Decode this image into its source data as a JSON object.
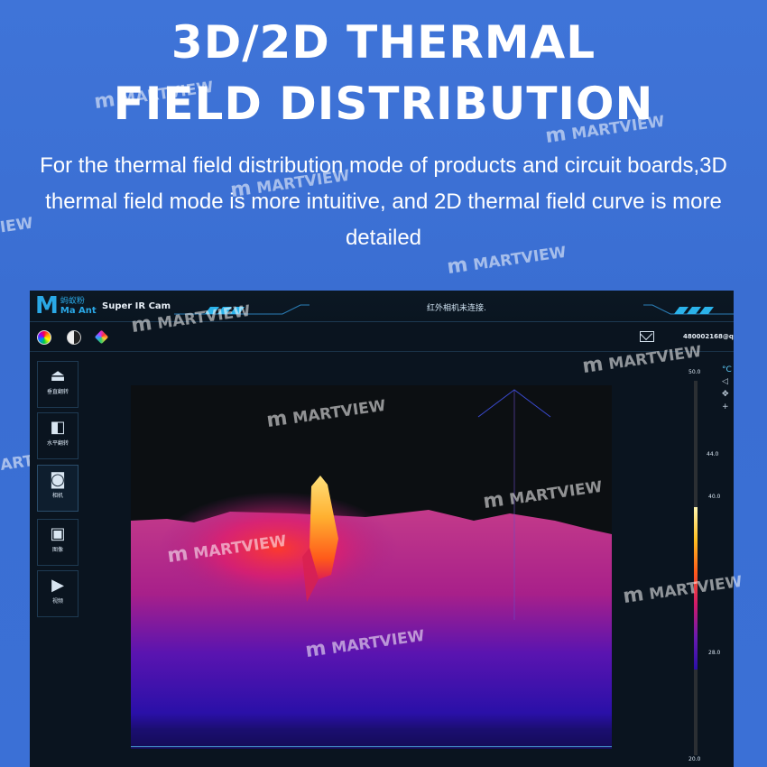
{
  "hero": {
    "title_line1": "3D/2D THERMAL",
    "title_line2": "FIELD DISTRIBUTION",
    "subtitle": "For the thermal field distribution mode of products and circuit boards,3D thermal field mode is more intuitive, and 2D thermal field curve is more detailed"
  },
  "watermarks": [
    {
      "text": "MARTVIEW",
      "icon": "m-logo-icon"
    },
    {
      "text": "MARTVIEW",
      "icon": "m-logo-icon"
    },
    {
      "text": "MARTVIEW",
      "icon": "m-logo-icon"
    },
    {
      "text": "MARTVIEW",
      "icon": "m-logo-icon"
    },
    {
      "text": "MARTVIEW",
      "icon": "m-logo-icon"
    },
    {
      "text": "MARTVIEW",
      "icon": "m-logo-icon"
    },
    {
      "text": "MARTVIEW",
      "icon": "m-logo-icon"
    },
    {
      "text": "MARTVIEW",
      "icon": "m-logo-icon"
    },
    {
      "text": "MARTVIEW",
      "icon": "m-logo-icon"
    },
    {
      "text": "MARTVIEW",
      "icon": "m-logo-icon"
    },
    {
      "text": "MARTVIEW",
      "icon": "m-logo-icon"
    },
    {
      "text": "IEW",
      "icon": ""
    },
    {
      "text": "ARTVIEW",
      "icon": ""
    }
  ],
  "app": {
    "logo_cn": "蚂蚁粉",
    "logo_en": "Ma Ant",
    "name": "Super IR Cam",
    "status": "红外相机未连接.",
    "user_email": "480002168@qq.co"
  },
  "toolbar": {
    "icons": [
      "color-palette-icon",
      "contrast-icon",
      "color-cube-icon"
    ]
  },
  "sidebar": {
    "items": [
      {
        "label": "垂直翻转",
        "icon": "flip-vertical-icon"
      },
      {
        "label": "水平翻转",
        "icon": "flip-horizontal-icon"
      },
      {
        "label": "相机",
        "icon": "camera-icon"
      },
      {
        "label": "图像",
        "icon": "image-icon"
      },
      {
        "label": "视频",
        "icon": "video-icon"
      }
    ]
  },
  "scale": {
    "unit": "°C",
    "max": "50.0",
    "min": "20.0",
    "markers": [
      "44.0",
      "40.0",
      "28.0"
    ]
  },
  "thermal_view": {
    "mode": "3D",
    "peak_color": "#ffe07a",
    "base_color": "#2a10a8",
    "mid_color": "#d82a6a"
  }
}
